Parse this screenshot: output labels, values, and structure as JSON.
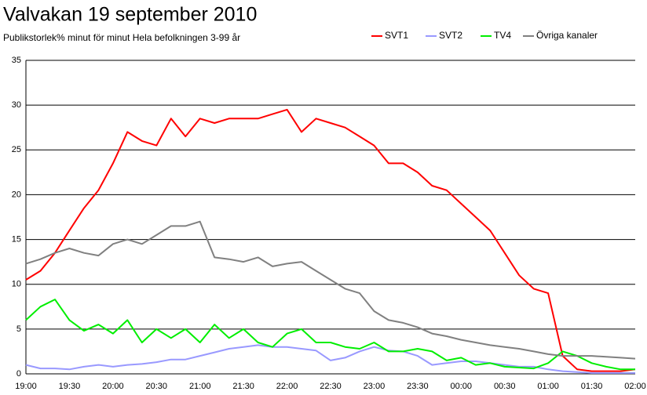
{
  "chart_data": {
    "type": "line",
    "title": "Valvakan 19 september 2010",
    "subtitle": "Publikstorlek% minut för minut  Hela befolkningen 3-99 år",
    "categories": [
      "19:00",
      null,
      null,
      "19:30",
      null,
      null,
      "20:00",
      null,
      null,
      "20:30",
      null,
      null,
      "21:00",
      null,
      null,
      "21:30",
      null,
      null,
      "22:00",
      null,
      null,
      "22:30",
      null,
      null,
      "23:00",
      null,
      null,
      "23:30",
      null,
      null,
      "00:00",
      null,
      null,
      "00:30",
      null,
      null,
      "01:00",
      null,
      null,
      "01:30",
      null,
      null,
      "02:00"
    ],
    "series": [
      {
        "name": "SVT1",
        "color": "#ff0000",
        "values": [
          10.5,
          11.5,
          13.5,
          16,
          18.5,
          20.5,
          23.5,
          27,
          26,
          25.5,
          28.5,
          26.5,
          28.5,
          28,
          28.5,
          28.5,
          28.5,
          29,
          29.5,
          27,
          28.5,
          28,
          27.5,
          26.5,
          25.5,
          23.5,
          23.5,
          22.5,
          21,
          20.5,
          19,
          17.5,
          16,
          13.5,
          11,
          9.5,
          9,
          2,
          0.5,
          0.3,
          0.3,
          0.3,
          0.5
        ]
      },
      {
        "name": "SVT2",
        "color": "#9999ff",
        "values": [
          1,
          0.6,
          0.6,
          0.5,
          0.8,
          1.0,
          0.8,
          1.0,
          1.1,
          1.3,
          1.6,
          1.6,
          2.0,
          2.4,
          2.8,
          3.0,
          3.2,
          3.0,
          3.0,
          2.8,
          2.6,
          1.5,
          1.8,
          2.5,
          3.0,
          2.6,
          2.5,
          2.0,
          1.0,
          1.2,
          1.4,
          1.4,
          1.2,
          1.0,
          0.8,
          0.8,
          0.5,
          0.3,
          0.2,
          0.1,
          0.1,
          0.1,
          0.1
        ]
      },
      {
        "name": "TV4",
        "color": "#00ee00",
        "values": [
          6,
          7.5,
          8.3,
          6,
          4.8,
          5.5,
          4.5,
          6,
          3.5,
          5,
          4,
          5,
          3.5,
          5.5,
          4,
          5,
          3.5,
          3,
          4.5,
          5,
          3.5,
          3.5,
          3.0,
          2.8,
          3.5,
          2.5,
          2.5,
          2.8,
          2.5,
          1.5,
          1.8,
          1.0,
          1.2,
          0.8,
          0.7,
          0.6,
          1.2,
          2.5,
          2.0,
          1.2,
          0.8,
          0.5,
          0.5
        ]
      },
      {
        "name": "Övriga kanaler",
        "color": "#808080",
        "values": [
          12.3,
          12.8,
          13.5,
          14,
          13.5,
          13.2,
          14.5,
          15,
          14.5,
          15.5,
          16.5,
          16.5,
          17,
          13,
          12.8,
          12.5,
          13,
          12,
          12.3,
          12.5,
          11.5,
          10.5,
          9.5,
          9.0,
          7.0,
          6.0,
          5.7,
          5.2,
          4.5,
          4.2,
          3.8,
          3.5,
          3.2,
          3.0,
          2.8,
          2.5,
          2.2,
          2.0,
          2.0,
          2.0,
          1.9,
          1.8,
          1.7
        ]
      }
    ],
    "ylim": [
      0,
      35
    ],
    "yticks": [
      0,
      5,
      10,
      15,
      20,
      25,
      30,
      35
    ],
    "grid": true,
    "legend": "top-right"
  }
}
